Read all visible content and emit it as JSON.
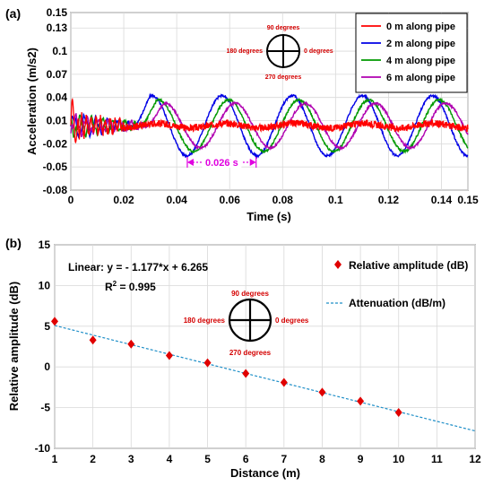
{
  "chart_data": [
    {
      "panel": "(a)",
      "type": "line",
      "xlabel": "Time (s)",
      "ylabel": "Acceleration (m/s2)",
      "xlim": [
        0,
        0.15
      ],
      "ylim": [
        -0.08,
        0.15
      ],
      "xticks": [
        "0",
        "0.02",
        "0.04",
        "0.06",
        "0.08",
        "0.1",
        "0.12",
        "0.14",
        "0.15"
      ],
      "xtick_values": [
        0,
        0.02,
        0.04,
        0.06,
        0.08,
        0.1,
        0.12,
        0.14,
        0.15
      ],
      "yticks": [
        "-0.08",
        "-0.05",
        "-0.02",
        "0.01",
        "0.04",
        "0.07",
        "0.1",
        "0.13",
        "0.15"
      ],
      "ytick_values": [
        -0.08,
        -0.05,
        -0.02,
        0.01,
        0.04,
        0.07,
        0.1,
        0.13,
        0.15
      ],
      "grid": true,
      "legend_position": "top-right",
      "series": [
        {
          "name": "0 m along pipe",
          "color": "#ff0000",
          "delay": 0,
          "peaks": [
            [
              0.002,
              0.045
            ],
            [
              0.004,
              -0.03
            ],
            [
              0.01,
              0.015
            ],
            [
              0.03,
              0.012
            ],
            [
              0.06,
              0.004
            ],
            [
              0.1,
              0.003
            ],
            [
              0.14,
              0.006
            ]
          ]
        },
        {
          "name": "2 m along pipe",
          "color": "#0000e6",
          "delay": 0.0,
          "peaks": [
            [
              0.031,
              0.04
            ],
            [
              0.037,
              -0.033
            ],
            [
              0.057,
              0.04
            ],
            [
              0.068,
              -0.035
            ],
            [
              0.083,
              0.04
            ],
            [
              0.095,
              -0.03
            ],
            [
              0.11,
              0.04
            ],
            [
              0.124,
              -0.03
            ],
            [
              0.137,
              0.036
            ],
            [
              0.149,
              -0.035
            ]
          ]
        },
        {
          "name": "4 m along pipe",
          "color": "#009900",
          "delay": 0.0025,
          "peaks": [
            [
              0.034,
              0.03
            ],
            [
              0.06,
              0.035
            ],
            [
              0.086,
              0.035
            ],
            [
              0.112,
              0.035
            ],
            [
              0.14,
              0.033
            ]
          ]
        },
        {
          "name": "6 m along pipe",
          "color": "#b000b0",
          "delay": 0.005,
          "peaks": [
            [
              0.036,
              0.022
            ],
            [
              0.062,
              0.03
            ],
            [
              0.088,
              0.03
            ],
            [
              0.114,
              0.03
            ],
            [
              0.142,
              0.03
            ]
          ]
        }
      ],
      "annotation": {
        "text": "0.026 s",
        "x_start": 0.044,
        "x_end": 0.07,
        "y": -0.044,
        "color": "#e000e0"
      },
      "compass": {
        "top": "90 degrees",
        "left": "180 degrees",
        "right": "0 degrees",
        "bottom": "270 degrees"
      }
    },
    {
      "panel": "(b)",
      "type": "scatter",
      "xlabel": "Distance (m)",
      "ylabel": "Relative amplitude (dB)",
      "xlim": [
        1,
        12
      ],
      "ylim": [
        -10,
        15
      ],
      "xticks": [
        "1",
        "2",
        "3",
        "4",
        "5",
        "6",
        "7",
        "8",
        "9",
        "10",
        "11",
        "12"
      ],
      "yticks": [
        "-10",
        "-5",
        "0",
        "5",
        "10",
        "15"
      ],
      "grid": true,
      "legend_position": "top-right",
      "series": [
        {
          "name": "Relative amplitude (dB)",
          "color": "#e00000",
          "marker": "diamond",
          "x": [
            1,
            2,
            3,
            4,
            5,
            6,
            7,
            8,
            9,
            10
          ],
          "y": [
            5.6,
            3.3,
            2.8,
            1.4,
            0.5,
            -0.8,
            -1.9,
            -3.1,
            -4.2,
            -5.6
          ]
        },
        {
          "name": "Attenuation (dB/m)",
          "color": "#1f8fc8",
          "line": "dashed",
          "slope": -1.177,
          "intercept": 6.265
        }
      ],
      "equation": {
        "line1": "Linear:  y = - 1.177*x + 6.265",
        "line2_prefix": "R",
        "line2_sup": "2",
        "line2_rest": " = 0.995"
      },
      "compass": {
        "top": "90 degrees",
        "left": "180 degrees",
        "right": "0 degrees",
        "bottom": "270 degrees"
      }
    }
  ]
}
